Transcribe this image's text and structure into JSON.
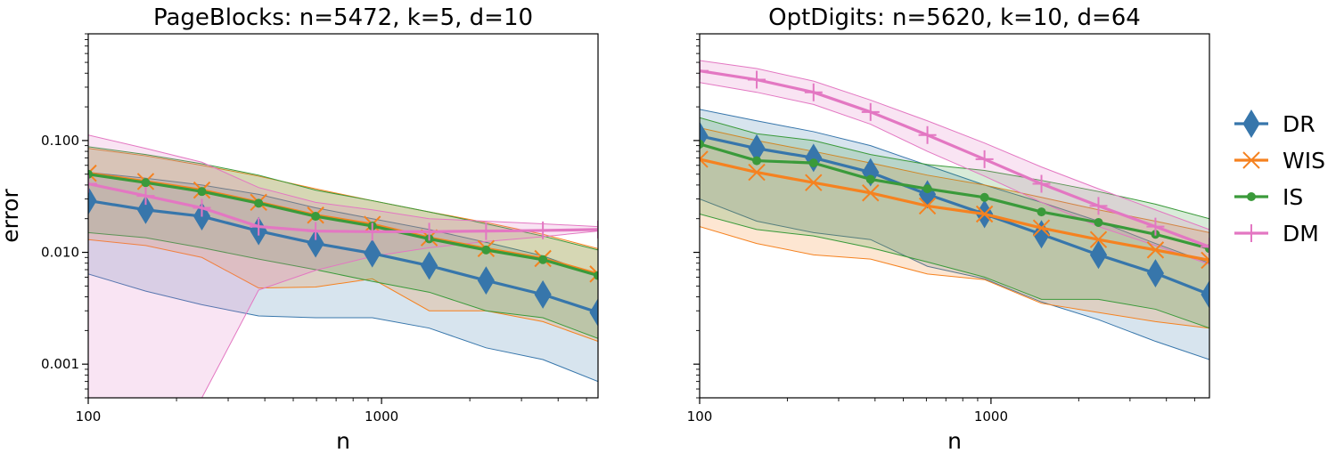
{
  "colors": {
    "DR": "#3776ab",
    "WIS": "#f58220",
    "IS": "#3a9a3a",
    "DM": "#e377c2"
  },
  "legend": {
    "entries": [
      {
        "key": "DR",
        "label": "DR",
        "marker": "diamond"
      },
      {
        "key": "WIS",
        "label": "WIS",
        "marker": "x"
      },
      {
        "key": "IS",
        "label": "IS",
        "marker": "dot"
      },
      {
        "key": "DM",
        "label": "DM",
        "marker": "plus"
      }
    ]
  },
  "chart_data": [
    {
      "type": "line",
      "title": "PageBlocks: n=5472, k=5, d=10",
      "xlabel": "n",
      "ylabel": "error",
      "xscale": "log",
      "yscale": "log",
      "xlim": [
        100,
        5472
      ],
      "ylim": [
        0.0005,
        0.9
      ],
      "xticks": [
        {
          "v": 100,
          "label": "100"
        },
        {
          "v": 1000,
          "label": "1000"
        }
      ],
      "yticks": [
        {
          "v": 0.001,
          "label": "0.001"
        },
        {
          "v": 0.01,
          "label": "0.010"
        },
        {
          "v": 0.1,
          "label": "0.100"
        }
      ],
      "x": [
        100,
        157,
        244,
        381,
        596,
        930,
        1454,
        2272,
        3549,
        5472
      ],
      "series": [
        {
          "name": "DR",
          "values": [
            0.029,
            0.024,
            0.021,
            0.0155,
            0.012,
            0.0098,
            0.0076,
            0.0056,
            0.0042,
            0.0029
          ],
          "upper": [
            0.052,
            0.046,
            0.04,
            0.033,
            0.025,
            0.02,
            0.016,
            0.0123,
            0.0093,
            0.0062
          ],
          "lower": [
            0.0064,
            0.0045,
            0.0034,
            0.0027,
            0.0026,
            0.0026,
            0.0021,
            0.0014,
            0.0011,
            0.0007
          ]
        },
        {
          "name": "WIS",
          "values": [
            0.051,
            0.043,
            0.036,
            0.028,
            0.0215,
            0.0178,
            0.0135,
            0.0108,
            0.0088,
            0.0064
          ],
          "upper": [
            0.085,
            0.073,
            0.06,
            0.048,
            0.037,
            0.029,
            0.023,
            0.0185,
            0.0145,
            0.0108
          ],
          "lower": [
            0.013,
            0.0115,
            0.009,
            0.0048,
            0.0049,
            0.0058,
            0.003,
            0.003,
            0.0024,
            0.0016
          ]
        },
        {
          "name": "IS",
          "values": [
            0.05,
            0.042,
            0.035,
            0.0275,
            0.021,
            0.0172,
            0.0132,
            0.0105,
            0.0086,
            0.0062
          ],
          "upper": [
            0.088,
            0.075,
            0.062,
            0.049,
            0.036,
            0.029,
            0.023,
            0.018,
            0.014,
            0.0105
          ],
          "lower": [
            0.015,
            0.0135,
            0.011,
            0.0087,
            0.007,
            0.0055,
            0.0044,
            0.003,
            0.0026,
            0.0017
          ]
        },
        {
          "name": "DM",
          "values": [
            0.041,
            0.032,
            0.025,
            0.017,
            0.0155,
            0.0153,
            0.0153,
            0.0155,
            0.0157,
            0.016
          ],
          "upper": [
            0.112,
            0.085,
            0.064,
            0.038,
            0.028,
            0.024,
            0.02,
            0.019,
            0.018,
            0.017
          ],
          "lower": [
            0.0005,
            0.0005,
            0.0005,
            0.0046,
            0.0069,
            0.0092,
            0.011,
            0.0125,
            0.0138,
            0.0155
          ]
        }
      ]
    },
    {
      "type": "line",
      "title": "OptDigits: n=5620, k=10, d=64",
      "xlabel": "n",
      "ylabel": "",
      "xscale": "log",
      "yscale": "log",
      "xlim": [
        100,
        5620
      ],
      "ylim": [
        0.0005,
        0.9
      ],
      "xticks": [
        {
          "v": 100,
          "label": "100"
        },
        {
          "v": 1000,
          "label": "1000"
        }
      ],
      "yticks": [
        {
          "v": 0.001,
          "label": ""
        },
        {
          "v": 0.01,
          "label": ""
        },
        {
          "v": 0.1,
          "label": ""
        }
      ],
      "x": [
        100,
        157,
        246,
        386,
        605,
        950,
        1490,
        2338,
        3668,
        5620
      ],
      "series": [
        {
          "name": "DR",
          "values": [
            0.11,
            0.085,
            0.07,
            0.052,
            0.033,
            0.022,
            0.0145,
            0.0095,
            0.0065,
            0.0042
          ],
          "upper": [
            0.19,
            0.15,
            0.12,
            0.09,
            0.06,
            0.04,
            0.028,
            0.019,
            0.012,
            0.008
          ],
          "lower": [
            0.03,
            0.019,
            0.015,
            0.013,
            0.0075,
            0.0058,
            0.0036,
            0.0025,
            0.0016,
            0.0011
          ]
        },
        {
          "name": "WIS",
          "values": [
            0.068,
            0.052,
            0.042,
            0.034,
            0.026,
            0.022,
            0.0165,
            0.013,
            0.0105,
            0.0085
          ],
          "upper": [
            0.13,
            0.1,
            0.08,
            0.063,
            0.049,
            0.04,
            0.031,
            0.024,
            0.019,
            0.015
          ],
          "lower": [
            0.017,
            0.012,
            0.0095,
            0.0087,
            0.0064,
            0.0057,
            0.0035,
            0.0029,
            0.0024,
            0.0021
          ]
        },
        {
          "name": "IS",
          "values": [
            0.093,
            0.066,
            0.063,
            0.045,
            0.037,
            0.031,
            0.023,
            0.0185,
            0.0145,
            0.0108
          ],
          "upper": [
            0.16,
            0.115,
            0.1,
            0.075,
            0.061,
            0.054,
            0.044,
            0.035,
            0.027,
            0.02
          ],
          "lower": [
            0.022,
            0.016,
            0.014,
            0.011,
            0.0082,
            0.006,
            0.0038,
            0.0038,
            0.0031,
            0.0021
          ]
        },
        {
          "name": "DM",
          "values": [
            0.42,
            0.35,
            0.27,
            0.18,
            0.112,
            0.068,
            0.041,
            0.026,
            0.017,
            0.0112
          ],
          "upper": [
            0.52,
            0.44,
            0.34,
            0.23,
            0.15,
            0.095,
            0.058,
            0.037,
            0.024,
            0.016
          ],
          "lower": [
            0.33,
            0.27,
            0.21,
            0.14,
            0.08,
            0.048,
            0.028,
            0.017,
            0.0115,
            0.0078
          ]
        }
      ]
    }
  ]
}
